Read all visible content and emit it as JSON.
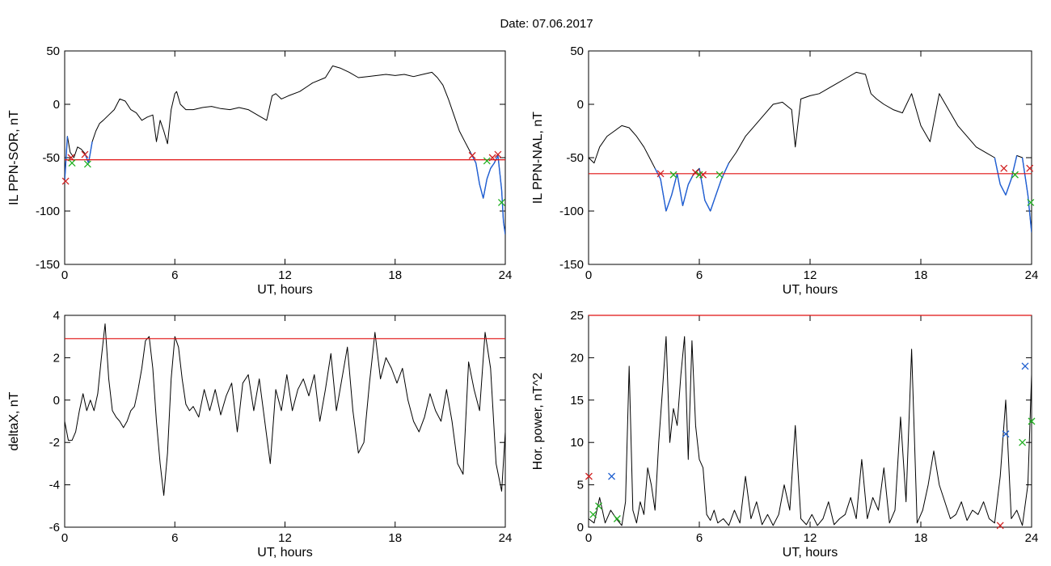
{
  "date_label": "Date:  07.06.2017",
  "chart_data": [
    {
      "type": "line",
      "ylabel": "IL PPN-SOR, nT",
      "xlabel": "UT, hours",
      "xlim": [
        0,
        24
      ],
      "ylim": [
        -150,
        50
      ],
      "xticks": [
        0,
        6,
        12,
        18,
        24
      ],
      "yticks": [
        50,
        0,
        -50,
        -100,
        -150
      ],
      "xtick_labels": [
        "0",
        "6",
        "12",
        "18",
        "24"
      ],
      "ytick_labels": [
        "50",
        "0",
        "-50",
        "-100",
        "-150"
      ],
      "threshold": -52,
      "threshold_color": "#e01010",
      "below_threshold_color": "#1f5fd6",
      "x": [
        0,
        0.15,
        0.3,
        0.5,
        0.7,
        0.9,
        1.1,
        1.3,
        1.5,
        1.7,
        1.9,
        2.1,
        2.4,
        2.7,
        3.0,
        3.3,
        3.6,
        3.9,
        4.2,
        4.5,
        4.8,
        5.0,
        5.2,
        5.4,
        5.6,
        5.8,
        6.0,
        6.1,
        6.3,
        6.6,
        7.0,
        7.5,
        8.0,
        8.5,
        9.0,
        9.5,
        10.0,
        10.5,
        11.0,
        11.3,
        11.5,
        11.8,
        12.2,
        12.8,
        13.5,
        14.2,
        14.6,
        15.0,
        15.5,
        16.0,
        16.5,
        17.0,
        17.5,
        18.0,
        18.5,
        19.0,
        19.5,
        20.0,
        20.3,
        20.6,
        20.9,
        21.2,
        21.5,
        21.8,
        22.1,
        22.4,
        22.6,
        22.8,
        23.0,
        23.2,
        23.4,
        23.6,
        23.8,
        23.9,
        24.0
      ],
      "y": [
        -72,
        -30,
        -45,
        -50,
        -40,
        -42,
        -46,
        -55,
        -35,
        -25,
        -18,
        -15,
        -10,
        -5,
        5,
        3,
        -5,
        -8,
        -15,
        -12,
        -10,
        -35,
        -15,
        -25,
        -37,
        -5,
        10,
        12,
        0,
        -5,
        -5,
        -3,
        -2,
        -4,
        -5,
        -3,
        -5,
        -10,
        -15,
        8,
        10,
        5,
        8,
        12,
        20,
        25,
        36,
        34,
        30,
        25,
        26,
        27,
        28,
        27,
        28,
        26,
        28,
        30,
        25,
        18,
        5,
        -10,
        -25,
        -35,
        -45,
        -55,
        -75,
        -88,
        -70,
        -60,
        -55,
        -48,
        -80,
        -110,
        -122
      ],
      "markers": [
        {
          "x": 0.05,
          "y": -72,
          "color": "#d02020"
        },
        {
          "x": 0.35,
          "y": -50,
          "color": "#d02020"
        },
        {
          "x": 1.1,
          "y": -47,
          "color": "#d02020"
        },
        {
          "x": 0.4,
          "y": -55,
          "color": "#20b020"
        },
        {
          "x": 1.25,
          "y": -56,
          "color": "#20b020"
        },
        {
          "x": 22.2,
          "y": -48,
          "color": "#d02020"
        },
        {
          "x": 23.3,
          "y": -50,
          "color": "#d02020"
        },
        {
          "x": 23.6,
          "y": -47,
          "color": "#d02020"
        },
        {
          "x": 23.0,
          "y": -53,
          "color": "#20b020"
        },
        {
          "x": 23.8,
          "y": -92,
          "color": "#20b020"
        }
      ]
    },
    {
      "type": "line",
      "ylabel": "IL PPN-NAL, nT",
      "xlabel": "UT, hours",
      "xlim": [
        0,
        24
      ],
      "ylim": [
        -150,
        50
      ],
      "xticks": [
        0,
        6,
        12,
        18,
        24
      ],
      "yticks": [
        50,
        0,
        -50,
        -100,
        -150
      ],
      "xtick_labels": [
        "0",
        "6",
        "12",
        "18",
        "24"
      ],
      "ytick_labels": [
        "50",
        "0",
        "-50",
        "-100",
        "-150"
      ],
      "threshold": -65,
      "threshold_color": "#e01010",
      "below_threshold_color": "#1f5fd6",
      "x": [
        0,
        0.3,
        0.6,
        1.0,
        1.4,
        1.8,
        2.2,
        2.6,
        3.0,
        3.3,
        3.6,
        3.9,
        4.2,
        4.5,
        4.8,
        5.1,
        5.4,
        5.7,
        6.0,
        6.3,
        6.6,
        6.9,
        7.2,
        7.6,
        8.0,
        8.5,
        9.0,
        9.5,
        10.0,
        10.5,
        11.0,
        11.2,
        11.5,
        12.0,
        12.5,
        13.0,
        13.5,
        14.0,
        14.5,
        15.0,
        15.3,
        15.6,
        16.0,
        16.5,
        17.0,
        17.5,
        18.0,
        18.5,
        19.0,
        19.5,
        20.0,
        20.5,
        21.0,
        21.5,
        22.0,
        22.3,
        22.6,
        22.9,
        23.2,
        23.5,
        23.8,
        24.0
      ],
      "y": [
        -50,
        -55,
        -40,
        -30,
        -25,
        -20,
        -22,
        -30,
        -40,
        -50,
        -60,
        -70,
        -100,
        -85,
        -65,
        -95,
        -75,
        -65,
        -60,
        -90,
        -100,
        -85,
        -70,
        -55,
        -45,
        -30,
        -20,
        -10,
        0,
        2,
        -5,
        -40,
        5,
        8,
        10,
        15,
        20,
        25,
        30,
        28,
        10,
        5,
        0,
        -5,
        -8,
        10,
        -20,
        -35,
        10,
        -5,
        -20,
        -30,
        -40,
        -45,
        -50,
        -75,
        -85,
        -70,
        -48,
        -50,
        -85,
        -120
      ],
      "markers": [
        {
          "x": 3.9,
          "y": -65,
          "color": "#d02020"
        },
        {
          "x": 5.8,
          "y": -64,
          "color": "#d02020"
        },
        {
          "x": 6.2,
          "y": -66,
          "color": "#d02020"
        },
        {
          "x": 4.6,
          "y": -66,
          "color": "#20b020"
        },
        {
          "x": 6.0,
          "y": -66,
          "color": "#20b020"
        },
        {
          "x": 7.1,
          "y": -66,
          "color": "#20b020"
        },
        {
          "x": 22.5,
          "y": -60,
          "color": "#d02020"
        },
        {
          "x": 23.9,
          "y": -60,
          "color": "#d02020"
        },
        {
          "x": 23.1,
          "y": -66,
          "color": "#20b020"
        },
        {
          "x": 23.95,
          "y": -92,
          "color": "#20b020"
        }
      ]
    },
    {
      "type": "line",
      "ylabel": "deltaX, nT",
      "xlabel": "UT, hours",
      "xlim": [
        0,
        24
      ],
      "ylim": [
        -6,
        4
      ],
      "xticks": [
        0,
        6,
        12,
        18,
        24
      ],
      "yticks": [
        4,
        2,
        0,
        -2,
        -4,
        -6
      ],
      "xtick_labels": [
        "0",
        "6",
        "12",
        "18",
        "24"
      ],
      "ytick_labels": [
        "4",
        "2",
        "0",
        "-2",
        "-4",
        "-6"
      ],
      "threshold": 2.9,
      "threshold_color": "#e01010",
      "x": [
        0,
        0.2,
        0.4,
        0.6,
        0.8,
        1.0,
        1.2,
        1.4,
        1.6,
        1.8,
        2.0,
        2.2,
        2.4,
        2.6,
        2.8,
        3.0,
        3.2,
        3.4,
        3.6,
        3.8,
        4.0,
        4.2,
        4.4,
        4.6,
        4.8,
        5.0,
        5.2,
        5.4,
        5.6,
        5.8,
        6.0,
        6.2,
        6.4,
        6.6,
        6.8,
        7.0,
        7.3,
        7.6,
        7.9,
        8.2,
        8.5,
        8.8,
        9.1,
        9.4,
        9.7,
        10.0,
        10.3,
        10.6,
        10.9,
        11.2,
        11.5,
        11.8,
        12.1,
        12.4,
        12.7,
        13.0,
        13.3,
        13.6,
        13.9,
        14.2,
        14.5,
        14.8,
        15.1,
        15.4,
        15.7,
        16.0,
        16.3,
        16.6,
        16.9,
        17.2,
        17.5,
        17.8,
        18.1,
        18.4,
        18.7,
        19.0,
        19.3,
        19.6,
        19.9,
        20.2,
        20.5,
        20.8,
        21.1,
        21.4,
        21.7,
        22.0,
        22.3,
        22.6,
        22.9,
        23.2,
        23.5,
        23.8,
        24.0
      ],
      "y": [
        -1.0,
        -1.9,
        -1.9,
        -1.5,
        -0.5,
        0.3,
        -0.5,
        0.0,
        -0.5,
        0.3,
        2.0,
        3.6,
        1.0,
        -0.5,
        -0.8,
        -1.0,
        -1.3,
        -1.0,
        -0.5,
        -0.3,
        0.5,
        1.5,
        2.8,
        3.0,
        1.5,
        -1.0,
        -3.0,
        -4.5,
        -2.5,
        1.0,
        3.0,
        2.5,
        1.0,
        -0.2,
        -0.5,
        -0.3,
        -0.8,
        0.5,
        -0.5,
        0.5,
        -0.7,
        0.2,
        0.8,
        -1.5,
        0.8,
        1.2,
        -0.5,
        1.0,
        -1.0,
        -3.0,
        0.5,
        -0.5,
        1.2,
        -0.5,
        0.5,
        1.0,
        0.2,
        1.2,
        -1.0,
        0.5,
        2.2,
        -0.5,
        1.0,
        2.5,
        -0.5,
        -2.5,
        -2.0,
        0.8,
        3.2,
        1.0,
        2.0,
        1.5,
        0.8,
        1.5,
        0.0,
        -1.0,
        -1.5,
        -0.8,
        0.3,
        -0.5,
        -1.0,
        0.5,
        -1.0,
        -3.0,
        -3.5,
        1.8,
        0.5,
        -0.5,
        3.2,
        1.5,
        -3.0,
        -4.3,
        -1.5
      ],
      "markers": []
    },
    {
      "type": "line",
      "ylabel": "Hor. power, nT^2",
      "xlabel": "UT, hours",
      "xlim": [
        0,
        24
      ],
      "ylim": [
        0,
        25
      ],
      "xticks": [
        0,
        6,
        12,
        18,
        24
      ],
      "yticks": [
        25,
        20,
        15,
        10,
        5,
        0
      ],
      "xtick_labels": [
        "0",
        "6",
        "12",
        "18",
        "24"
      ],
      "ytick_labels": [
        "25",
        "20",
        "15",
        "10",
        "5",
        "0"
      ],
      "threshold": 25,
      "threshold_color": "#e01010",
      "x": [
        0,
        0.3,
        0.6,
        0.9,
        1.2,
        1.5,
        1.8,
        2.0,
        2.2,
        2.4,
        2.6,
        2.8,
        3.0,
        3.2,
        3.4,
        3.6,
        3.8,
        4.0,
        4.2,
        4.4,
        4.6,
        4.8,
        5.0,
        5.2,
        5.4,
        5.6,
        5.8,
        6.0,
        6.2,
        6.4,
        6.6,
        6.8,
        7.0,
        7.3,
        7.6,
        7.9,
        8.2,
        8.5,
        8.8,
        9.1,
        9.4,
        9.7,
        10.0,
        10.3,
        10.6,
        10.9,
        11.2,
        11.5,
        11.8,
        12.1,
        12.4,
        12.7,
        13.0,
        13.3,
        13.6,
        13.9,
        14.2,
        14.5,
        14.8,
        15.1,
        15.4,
        15.7,
        16.0,
        16.3,
        16.6,
        16.9,
        17.2,
        17.5,
        17.8,
        18.1,
        18.4,
        18.7,
        19.0,
        19.3,
        19.6,
        19.9,
        20.2,
        20.5,
        20.8,
        21.1,
        21.4,
        21.7,
        22.0,
        22.3,
        22.6,
        22.9,
        23.2,
        23.5,
        23.8,
        24.0
      ],
      "y": [
        1.0,
        0.5,
        3.5,
        0.5,
        2.0,
        1.0,
        0.2,
        3.0,
        19.0,
        2.0,
        0.5,
        3.0,
        1.5,
        7.0,
        5.0,
        2.0,
        10.0,
        16.0,
        22.5,
        10.0,
        14.0,
        12.0,
        18.0,
        22.5,
        8.0,
        22.0,
        12.0,
        8.0,
        7.0,
        1.5,
        0.8,
        2.0,
        0.5,
        1.0,
        0.2,
        2.0,
        0.5,
        6.0,
        1.0,
        3.0,
        0.3,
        1.5,
        0.2,
        1.5,
        5.0,
        2.0,
        12.0,
        1.0,
        0.3,
        1.5,
        0.2,
        1.0,
        3.0,
        0.3,
        1.0,
        1.5,
        3.5,
        1.0,
        8.0,
        1.0,
        3.5,
        2.0,
        7.0,
        0.5,
        2.0,
        13.0,
        3.0,
        21.0,
        0.5,
        2.0,
        5.0,
        9.0,
        5.0,
        3.0,
        1.0,
        1.5,
        3.0,
        0.8,
        2.0,
        1.5,
        3.0,
        1.0,
        0.5,
        6.0,
        15.0,
        1.0,
        2.0,
        0.2,
        5.0,
        18.0
      ],
      "markers": [
        {
          "x": 0.02,
          "y": 6.0,
          "color": "#d02020"
        },
        {
          "x": 0.25,
          "y": 1.5,
          "color": "#20b020"
        },
        {
          "x": 0.55,
          "y": 2.5,
          "color": "#20b020"
        },
        {
          "x": 1.25,
          "y": 6.0,
          "color": "#2060d0"
        },
        {
          "x": 1.55,
          "y": 1.0,
          "color": "#20b020"
        },
        {
          "x": 22.3,
          "y": 0.2,
          "color": "#d02020"
        },
        {
          "x": 22.6,
          "y": 11.0,
          "color": "#2060d0"
        },
        {
          "x": 23.5,
          "y": 10.0,
          "color": "#20b020"
        },
        {
          "x": 23.65,
          "y": 19.0,
          "color": "#2060d0"
        },
        {
          "x": 24.0,
          "y": 12.5,
          "color": "#20b020"
        }
      ]
    }
  ]
}
